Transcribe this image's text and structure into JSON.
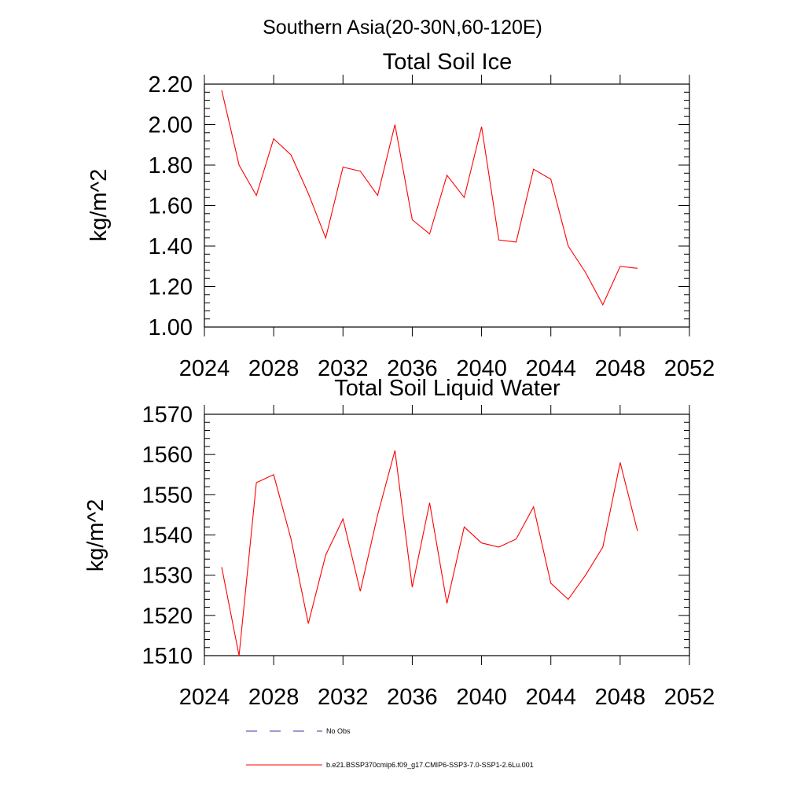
{
  "figure": {
    "title": "Southern Asia(20-30N,60-120E)"
  },
  "chart_data": [
    {
      "type": "line",
      "title": "Total Soil Ice",
      "xlabel": "",
      "ylabel": "kg/m^2",
      "xlim": [
        2024,
        2052
      ],
      "ylim": [
        1.0,
        2.2
      ],
      "xticks": [
        2024,
        2028,
        2032,
        2036,
        2040,
        2044,
        2048,
        2052
      ],
      "xtick_labels": [
        "2024",
        "2028",
        "2032",
        "2036",
        "2040",
        "2044",
        "2048",
        "2052"
      ],
      "yticks": [
        1.0,
        1.2,
        1.4,
        1.6,
        1.8,
        2.0,
        2.2
      ],
      "ytick_labels": [
        "1.00",
        "1.20",
        "1.40",
        "1.60",
        "1.80",
        "2.00",
        "2.20"
      ],
      "grid": false,
      "x": [
        2025,
        2026,
        2027,
        2028,
        2029,
        2030,
        2031,
        2032,
        2033,
        2034,
        2035,
        2036,
        2037,
        2038,
        2039,
        2040,
        2041,
        2042,
        2043,
        2044,
        2045,
        2046,
        2047,
        2048,
        2049
      ],
      "series": [
        {
          "name": "b.e21.BSSP370cmip6.f09_g17.CMIP6-SSP3-7.0-SSP1-2.6Lu.001",
          "color": "#ff0000",
          "values": [
            2.17,
            1.8,
            1.65,
            1.93,
            1.85,
            1.66,
            1.44,
            1.79,
            1.77,
            1.65,
            2.0,
            1.53,
            1.46,
            1.75,
            1.64,
            1.99,
            1.43,
            1.42,
            1.78,
            1.73,
            1.4,
            1.27,
            1.11,
            1.3,
            1.29
          ]
        }
      ]
    },
    {
      "type": "line",
      "title": "Total Soil Liquid Water",
      "xlabel": "",
      "ylabel": "kg/m^2",
      "xlim": [
        2024,
        2052
      ],
      "ylim": [
        1510,
        1570
      ],
      "xticks": [
        2024,
        2028,
        2032,
        2036,
        2040,
        2044,
        2048,
        2052
      ],
      "xtick_labels": [
        "2024",
        "2028",
        "2032",
        "2036",
        "2040",
        "2044",
        "2048",
        "2052"
      ],
      "yticks": [
        1510,
        1520,
        1530,
        1540,
        1550,
        1560,
        1570
      ],
      "ytick_labels": [
        "1510",
        "1520",
        "1530",
        "1540",
        "1550",
        "1560",
        "1570"
      ],
      "grid": false,
      "x": [
        2025,
        2026,
        2027,
        2028,
        2029,
        2030,
        2031,
        2032,
        2033,
        2034,
        2035,
        2036,
        2037,
        2038,
        2039,
        2040,
        2041,
        2042,
        2043,
        2044,
        2045,
        2046,
        2047,
        2048,
        2049
      ],
      "series": [
        {
          "name": "b.e21.BSSP370cmip6.f09_g17.CMIP6-SSP3-7.0-SSP1-2.6Lu.001",
          "color": "#ff0000",
          "values": [
            1532,
            1510,
            1553,
            1555,
            1539,
            1518,
            1535,
            1544,
            1526,
            1545,
            1561,
            1527,
            1548,
            1523,
            1542,
            1538,
            1537,
            1539,
            1547,
            1528,
            1524,
            1530,
            1537,
            1558,
            1541
          ]
        }
      ]
    }
  ],
  "legend": {
    "placement": "bottom",
    "items": [
      {
        "label": "No Obs",
        "color": "#3a3aa8",
        "style": "dashed"
      },
      {
        "label": "b.e21.BSSP370cmip6.f09_g17.CMIP6-SSP3-7.0-SSP1-2.6Lu.001",
        "color": "#ff0000",
        "style": "solid"
      }
    ]
  }
}
